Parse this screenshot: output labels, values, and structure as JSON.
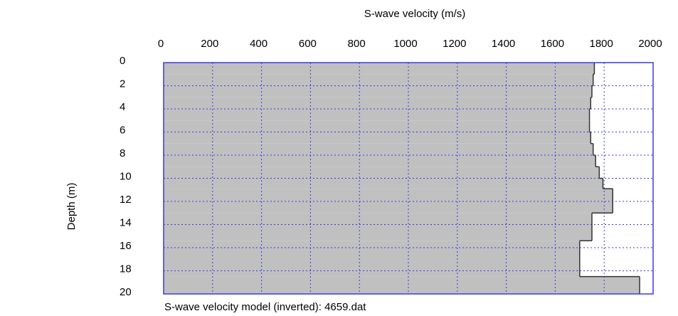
{
  "chart_data": {
    "type": "step",
    "title": "S-wave velocity (m/s)",
    "y_label": "Depth (m)",
    "caption": "S-wave velocity model (inverted): 4659.dat",
    "depths": [
      0,
      1,
      2,
      3,
      4,
      5,
      6,
      7,
      8,
      9,
      10,
      10.9,
      13,
      15.4,
      18.5
    ],
    "values": [
      1760,
      1755,
      1750,
      1745,
      1740,
      1740,
      1745,
      1755,
      1765,
      1780,
      1795,
      1835,
      1750,
      1700,
      1945
    ],
    "color": "#c0c0c0",
    "line_color": "#333333",
    "grid_color": "#3a3adf",
    "xlim": [
      0,
      2000
    ],
    "xticks": [
      0,
      200,
      400,
      600,
      800,
      1000,
      1200,
      1400,
      1600,
      1800,
      2000
    ],
    "ylim": [
      0,
      20
    ],
    "yticks": [
      0,
      2,
      4,
      6,
      8,
      10,
      12,
      14,
      16,
      18,
      20
    ],
    "grid": true
  }
}
